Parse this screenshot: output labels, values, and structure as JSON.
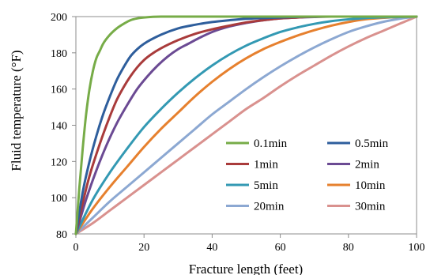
{
  "chart_data": {
    "type": "line",
    "title": "",
    "xlabel": "Fracture length (feet)",
    "ylabel": "Fluid temperature (°F)",
    "xlim": [
      0,
      100
    ],
    "ylim": [
      80,
      200
    ],
    "x_ticks": [
      0,
      20,
      40,
      60,
      80,
      100
    ],
    "y_ticks": [
      80,
      100,
      120,
      140,
      160,
      180,
      200
    ],
    "grid": false,
    "legend": {
      "position": "bottom-right",
      "columns": 2
    },
    "series": [
      {
        "name": "0.1min",
        "color": "#77AC48",
        "x": [
          0,
          1,
          2,
          3,
          4,
          5,
          6,
          7,
          8,
          10,
          12,
          14,
          16,
          18,
          20,
          25,
          30,
          40,
          60,
          80,
          100
        ],
        "y": [
          80,
          105,
          127,
          146,
          160,
          170,
          177,
          181,
          185,
          190,
          193.5,
          196,
          198,
          199,
          199.5,
          200,
          200,
          200,
          200,
          200,
          200
        ]
      },
      {
        "name": "0.5min",
        "color": "#2E5E9C",
        "x": [
          0,
          2,
          4,
          6,
          8,
          10,
          12,
          14,
          16,
          18,
          20,
          25,
          30,
          35,
          40,
          45,
          50,
          60,
          70,
          80,
          100
        ],
        "y": [
          80,
          103,
          120,
          134,
          146,
          156,
          165,
          172,
          178,
          182,
          185,
          190,
          193.5,
          195.5,
          197,
          198,
          198.8,
          199.5,
          200,
          200,
          200
        ]
      },
      {
        "name": "1min",
        "color": "#A93B3B",
        "x": [
          0,
          2,
          4,
          6,
          8,
          10,
          12,
          14,
          16,
          18,
          20,
          22,
          25,
          30,
          35,
          40,
          45,
          50,
          55,
          60,
          65,
          70,
          80,
          90,
          100
        ],
        "y": [
          80,
          97,
          112,
          124,
          135,
          145,
          154,
          161,
          167,
          172,
          176,
          179,
          182.5,
          187,
          190.5,
          193,
          195,
          196.8,
          198,
          199,
          199.5,
          200,
          200,
          200,
          200
        ]
      },
      {
        "name": "2min",
        "color": "#6B4A93",
        "x": [
          0,
          3,
          6,
          9,
          12,
          15,
          18,
          21,
          24,
          27,
          30,
          33,
          36,
          40,
          45,
          50,
          55,
          60,
          65,
          70,
          75,
          80,
          90,
          100
        ],
        "y": [
          80,
          99,
          115,
          129,
          141,
          151,
          160,
          167,
          173,
          178,
          182,
          185,
          188,
          191.5,
          194.5,
          196.5,
          198,
          199,
          199.5,
          199.8,
          200,
          200,
          200,
          200
        ]
      },
      {
        "name": "5min",
        "color": "#3399B3",
        "x": [
          0,
          5,
          10,
          15,
          20,
          25,
          30,
          35,
          40,
          45,
          50,
          55,
          60,
          65,
          70,
          75,
          80,
          85,
          90,
          95,
          100
        ],
        "y": [
          80,
          99,
          114,
          127,
          139,
          149,
          158,
          166,
          173,
          179,
          184,
          188,
          191.5,
          194,
          196,
          197.5,
          198.5,
          199.2,
          199.6,
          199.8,
          200
        ]
      },
      {
        "name": "10min",
        "color": "#E6802E",
        "x": [
          0,
          5,
          10,
          15,
          20,
          25,
          30,
          35,
          40,
          45,
          50,
          55,
          60,
          65,
          70,
          75,
          80,
          85,
          90,
          95,
          100
        ],
        "y": [
          80,
          94,
          106,
          117,
          128,
          138,
          147,
          156,
          164,
          171,
          177,
          182,
          186,
          189.5,
          192.5,
          195,
          197,
          198.5,
          199.3,
          199.8,
          200
        ]
      },
      {
        "name": "20min",
        "color": "#8CA8D2",
        "x": [
          0,
          5,
          10,
          15,
          20,
          25,
          30,
          35,
          40,
          45,
          50,
          55,
          60,
          65,
          70,
          75,
          80,
          85,
          90,
          95,
          100
        ],
        "y": [
          80,
          89,
          98,
          106,
          114,
          122,
          130,
          138,
          146,
          153,
          160,
          166.5,
          172.5,
          178,
          183,
          187.5,
          191.5,
          194.5,
          197,
          198.8,
          200
        ]
      },
      {
        "name": "30min",
        "color": "#D9918E",
        "x": [
          0,
          5,
          10,
          15,
          20,
          25,
          30,
          35,
          40,
          45,
          50,
          55,
          60,
          65,
          70,
          75,
          80,
          85,
          90,
          95,
          100
        ],
        "y": [
          80,
          86,
          93,
          100,
          107,
          114,
          121,
          128,
          135,
          142,
          149,
          155,
          161.5,
          167.5,
          173,
          178.5,
          183.5,
          188,
          192,
          196,
          200
        ]
      }
    ]
  }
}
